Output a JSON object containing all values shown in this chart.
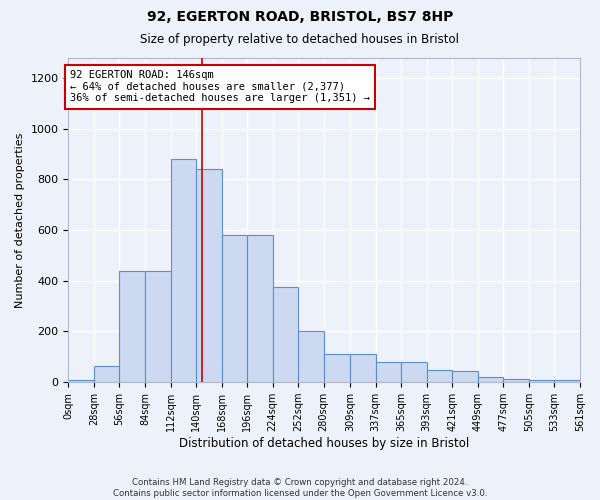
{
  "title1": "92, EGERTON ROAD, BRISTOL, BS7 8HP",
  "title2": "Size of property relative to detached houses in Bristol",
  "xlabel": "Distribution of detached houses by size in Bristol",
  "ylabel": "Number of detached properties",
  "bar_values": [
    10,
    65,
    440,
    440,
    880,
    840,
    580,
    580,
    375,
    200,
    110,
    110,
    80,
    80,
    50,
    45,
    20,
    12,
    10,
    10,
    10
  ],
  "bin_edges": [
    0,
    28,
    56,
    84,
    112,
    140,
    168,
    196,
    224,
    252,
    280,
    309,
    337,
    365,
    393,
    421,
    449,
    477,
    505,
    533,
    561
  ],
  "tick_labels": [
    "0sqm",
    "28sqm",
    "56sqm",
    "84sqm",
    "112sqm",
    "140sqm",
    "168sqm",
    "196sqm",
    "224sqm",
    "252sqm",
    "280sqm",
    "309sqm",
    "337sqm",
    "365sqm",
    "393sqm",
    "421sqm",
    "449sqm",
    "477sqm",
    "505sqm",
    "533sqm",
    "561sqm"
  ],
  "bar_color": "#ccd9f0",
  "bar_edge_color": "#5b8fd4",
  "property_line_x": 146,
  "property_line_color": "#cc0000",
  "annotation_text": "92 EGERTON ROAD: 146sqm\n← 64% of detached houses are smaller (2,377)\n36% of semi-detached houses are larger (1,351) →",
  "annotation_box_color": "white",
  "annotation_box_edge": "#cc0000",
  "ylim": [
    0,
    1280
  ],
  "yticks": [
    0,
    200,
    400,
    600,
    800,
    1000,
    1200
  ],
  "bg_color": "#edf1f9",
  "grid_color": "white",
  "footnote": "Contains HM Land Registry data © Crown copyright and database right 2024.\nContains public sector information licensed under the Open Government Licence v3.0."
}
